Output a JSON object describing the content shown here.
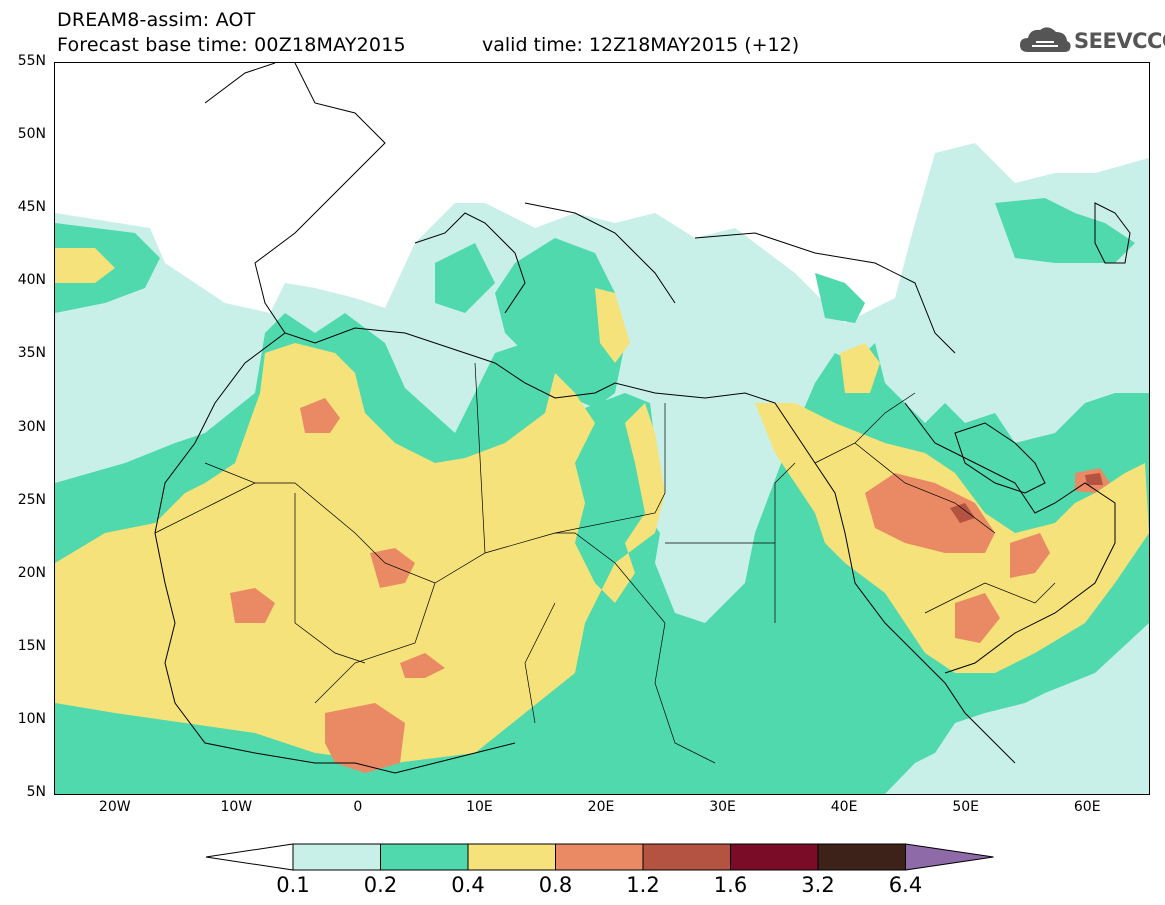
{
  "title": {
    "line1": "DREAM8-assim: AOT",
    "line2_base": "Forecast base time: 00Z18MAY2015",
    "line2_valid": "valid time: 12Z18MAY2015 (+12)"
  },
  "logo": {
    "text": "SEEVCCC",
    "icon": "cloud-icon"
  },
  "map": {
    "lat_labels": [
      "55N",
      "50N",
      "45N",
      "40N",
      "35N",
      "30N",
      "25N",
      "20N",
      "15N",
      "10N",
      "5N"
    ],
    "lon_labels": [
      "20W",
      "10W",
      "0",
      "10E",
      "20E",
      "30E",
      "40E",
      "50E",
      "60E"
    ],
    "lat_range": [
      5,
      55
    ],
    "lon_range": [
      -25,
      65
    ],
    "field": "AOT"
  },
  "colorbar": {
    "ticks": [
      "0.1",
      "0.2",
      "0.4",
      "0.8",
      "1.2",
      "1.6",
      "3.2",
      "6.4"
    ],
    "colors": [
      "#ffffff",
      "#c8f0e8",
      "#4fd9ad",
      "#f5e27a",
      "#e98a64",
      "#b45341",
      "#7a0c27",
      "#3c2218",
      "#8f6aa8"
    ],
    "colors_note": "below 0.1, 0.1-0.2, 0.2-0.4, 0.4-0.8, 0.8-1.2, 1.2-1.6, 1.6-3.2, 3.2-6.4, above 6.4"
  }
}
